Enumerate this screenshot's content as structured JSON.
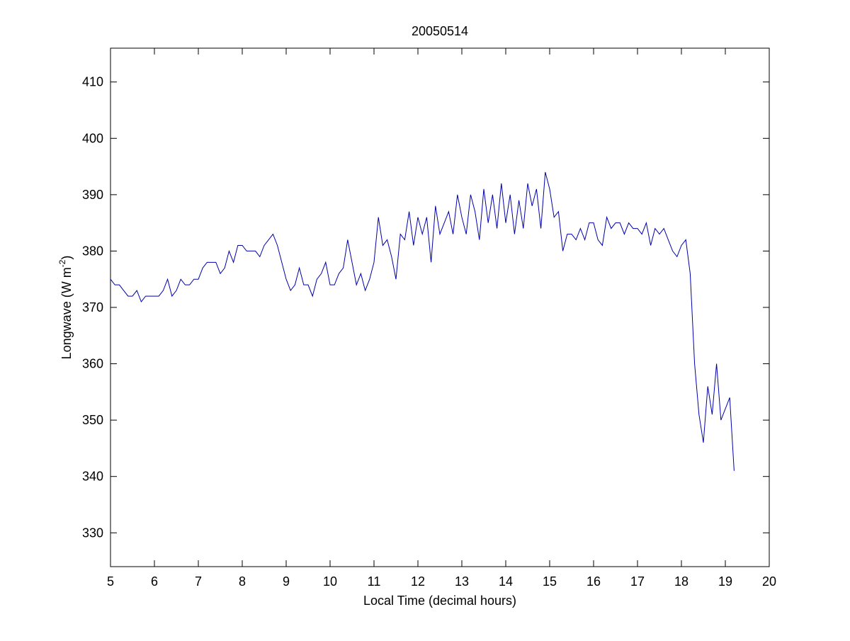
{
  "chart_data": {
    "type": "line",
    "title": "20050514",
    "xlabel": "Local Time (decimal hours)",
    "ylabel": {
      "text": "Longwave (W m",
      "sup": "-2",
      "suffix": ")"
    },
    "xlim": [
      5,
      20
    ],
    "xticks": [
      5,
      6,
      7,
      8,
      9,
      10,
      11,
      12,
      13,
      14,
      15,
      16,
      17,
      18,
      19,
      20
    ],
    "ylim": [
      324,
      416
    ],
    "yticks": [
      330,
      340,
      350,
      360,
      370,
      380,
      390,
      400,
      410
    ],
    "x": [
      5.0,
      5.1,
      5.2,
      5.3,
      5.4,
      5.5,
      5.6,
      5.7,
      5.8,
      5.9,
      6.0,
      6.1,
      6.2,
      6.3,
      6.4,
      6.5,
      6.6,
      6.7,
      6.8,
      6.9,
      7.0,
      7.1,
      7.2,
      7.3,
      7.4,
      7.5,
      7.6,
      7.7,
      7.8,
      7.9,
      8.0,
      8.1,
      8.2,
      8.3,
      8.4,
      8.5,
      8.6,
      8.7,
      8.8,
      8.9,
      9.0,
      9.1,
      9.2,
      9.3,
      9.4,
      9.5,
      9.6,
      9.7,
      9.8,
      9.9,
      10.0,
      10.1,
      10.2,
      10.3,
      10.4,
      10.5,
      10.6,
      10.7,
      10.8,
      10.9,
      11.0,
      11.1,
      11.2,
      11.3,
      11.4,
      11.5,
      11.6,
      11.7,
      11.8,
      11.9,
      12.0,
      12.1,
      12.2,
      12.3,
      12.4,
      12.5,
      12.6,
      12.7,
      12.8,
      12.9,
      13.0,
      13.1,
      13.2,
      13.3,
      13.4,
      13.5,
      13.6,
      13.7,
      13.8,
      13.9,
      14.0,
      14.1,
      14.2,
      14.3,
      14.4,
      14.5,
      14.6,
      14.7,
      14.8,
      14.9,
      15.0,
      15.1,
      15.2,
      15.3,
      15.4,
      15.5,
      15.6,
      15.7,
      15.8,
      15.9,
      16.0,
      16.1,
      16.2,
      16.3,
      16.4,
      16.5,
      16.6,
      16.7,
      16.8,
      16.9,
      17.0,
      17.1,
      17.2,
      17.3,
      17.4,
      17.5,
      17.6,
      17.7,
      17.8,
      17.9,
      18.0,
      18.1,
      18.2,
      18.3,
      18.4,
      18.5,
      18.6,
      18.7,
      18.8,
      18.9,
      19.0,
      19.1,
      19.2
    ],
    "series": [
      {
        "color": "#0000aa",
        "values": [
          375,
          374,
          374,
          373,
          372,
          372,
          373,
          371,
          372,
          372,
          372,
          372,
          373,
          375,
          372,
          373,
          375,
          374,
          374,
          375,
          375,
          377,
          378,
          378,
          378,
          376,
          377,
          380,
          378,
          381,
          381,
          380,
          380,
          380,
          379,
          381,
          382,
          383,
          381,
          378,
          375,
          373,
          374,
          377,
          374,
          374,
          372,
          375,
          376,
          378,
          374,
          374,
          376,
          377,
          382,
          378,
          374,
          376,
          373,
          375,
          378,
          386,
          381,
          382,
          379,
          375,
          383,
          382,
          387,
          381,
          386,
          383,
          386,
          378,
          388,
          383,
          385,
          387,
          383,
          390,
          386,
          383,
          390,
          387,
          382,
          391,
          385,
          390,
          384,
          392,
          385,
          390,
          383,
          389,
          384,
          392,
          388,
          391,
          384,
          394,
          391,
          386,
          387,
          380,
          383,
          383,
          382,
          384,
          382,
          385,
          385,
          382,
          381,
          386,
          384,
          385,
          385,
          383,
          385,
          384,
          384,
          383,
          385,
          381,
          384,
          383,
          384,
          382,
          380,
          379,
          381,
          382,
          376,
          360,
          351,
          346,
          356,
          351,
          360,
          350,
          352,
          354,
          341
        ]
      }
    ]
  }
}
